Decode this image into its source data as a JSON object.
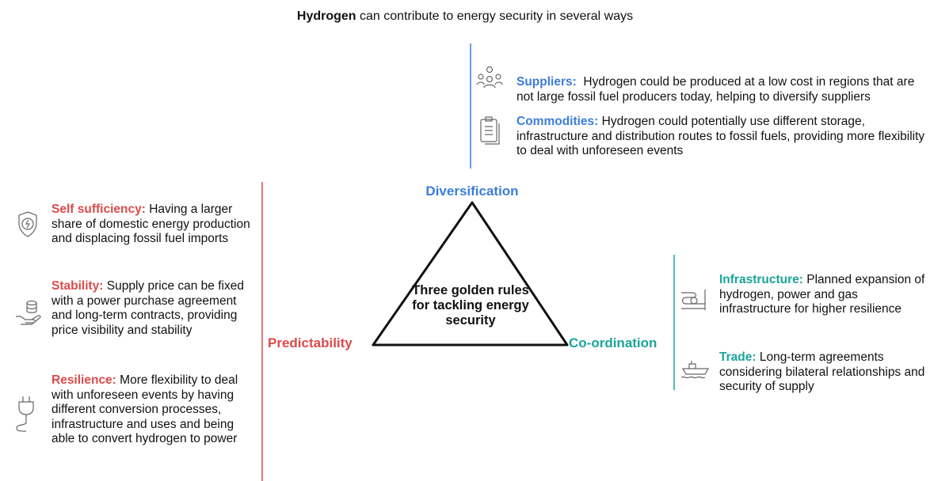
{
  "title": {
    "bold": "Hydrogen",
    "rest": "can contribute to energy security in several ways"
  },
  "center": {
    "text": "Three golden rules for tackling energy security"
  },
  "corners": {
    "top": "Diversification",
    "left": "Predictability",
    "right": "Co-ordination"
  },
  "top": {
    "items": [
      {
        "label": "Suppliers:",
        "text": "Hydrogen could be produced at a low cost in regions that are not large fossil fuel producers today, helping to diversify suppliers"
      },
      {
        "label": "Commodities:",
        "text": "Hydrogen could potentially use different storage, infrastructure and distribution routes to fossil fuels, providing more flexibility to deal with unforeseen events"
      }
    ]
  },
  "left": {
    "items": [
      {
        "label": "Self sufficiency:",
        "text": "Having a larger share of domestic energy production and displacing fossil fuel imports"
      },
      {
        "label": "Stability:",
        "text": "Supply price can be fixed with a power purchase agreement and long-term contracts, providing price visibility and stability"
      },
      {
        "label": "Resilience:",
        "text": "More flexibility to deal with unforeseen events by having different conversion processes, infrastructure and uses and being able to convert hydrogen to power"
      }
    ]
  },
  "right": {
    "items": [
      {
        "label": "Infrastructure:",
        "text": "Planned expansion of hydrogen, power and gas infrastructure for higher resilience"
      },
      {
        "label": "Trade:",
        "text": "Long-term agreements considering bilateral relationships and security of supply"
      }
    ]
  }
}
